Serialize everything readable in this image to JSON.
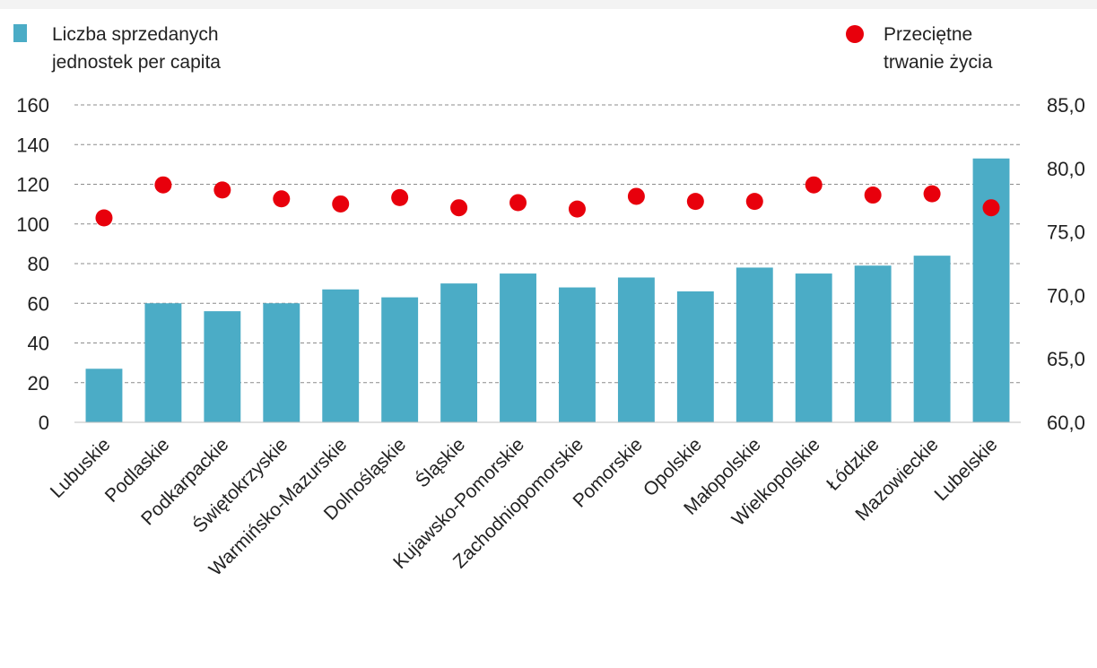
{
  "chart_data": {
    "type": "bar",
    "categories": [
      "Lubuskie",
      "Podlaskie",
      "Podkarpackie",
      "Świętokrzyskie",
      "Warmińsko-Mazurskie",
      "Dolnośląskie",
      "Śląskie",
      "Kujawsko-Pomorskie",
      "Zachodniopomorskie",
      "Pomorskie",
      "Opolskie",
      "Małopolskie",
      "Wielkopolskie",
      "Łódzkie",
      "Mazowieckie",
      "Lubelskie"
    ],
    "series": [
      {
        "name": "Liczba sprzedanych jednostek per capita",
        "name_lines": [
          "Liczba sprzedanych",
          "jednostek per capita"
        ],
        "type": "bar",
        "axis": "left",
        "color": "#4bacc6",
        "values": [
          27,
          60,
          56,
          60,
          67,
          63,
          70,
          75,
          68,
          73,
          66,
          78,
          75,
          79,
          84,
          133
        ]
      },
      {
        "name": "Przeciętne trwanie życia",
        "name_lines": [
          "Przeciętne",
          "trwanie życia"
        ],
        "type": "scatter",
        "axis": "right",
        "color": "#e8000c",
        "values": [
          76.1,
          78.7,
          78.3,
          77.6,
          77.2,
          77.7,
          76.9,
          77.3,
          76.8,
          77.8,
          77.4,
          77.4,
          78.7,
          77.9,
          78.0,
          76.9
        ]
      }
    ],
    "y_left": {
      "lim": [
        0,
        160
      ],
      "ticks": [
        0,
        20,
        40,
        60,
        80,
        100,
        120,
        140,
        160
      ]
    },
    "y_right": {
      "lim": [
        60,
        85
      ],
      "ticks": [
        "60,0",
        "65,0",
        "70,0",
        "75,0",
        "80,0",
        "85,0"
      ]
    },
    "grid": true,
    "legend_placement": "top"
  }
}
